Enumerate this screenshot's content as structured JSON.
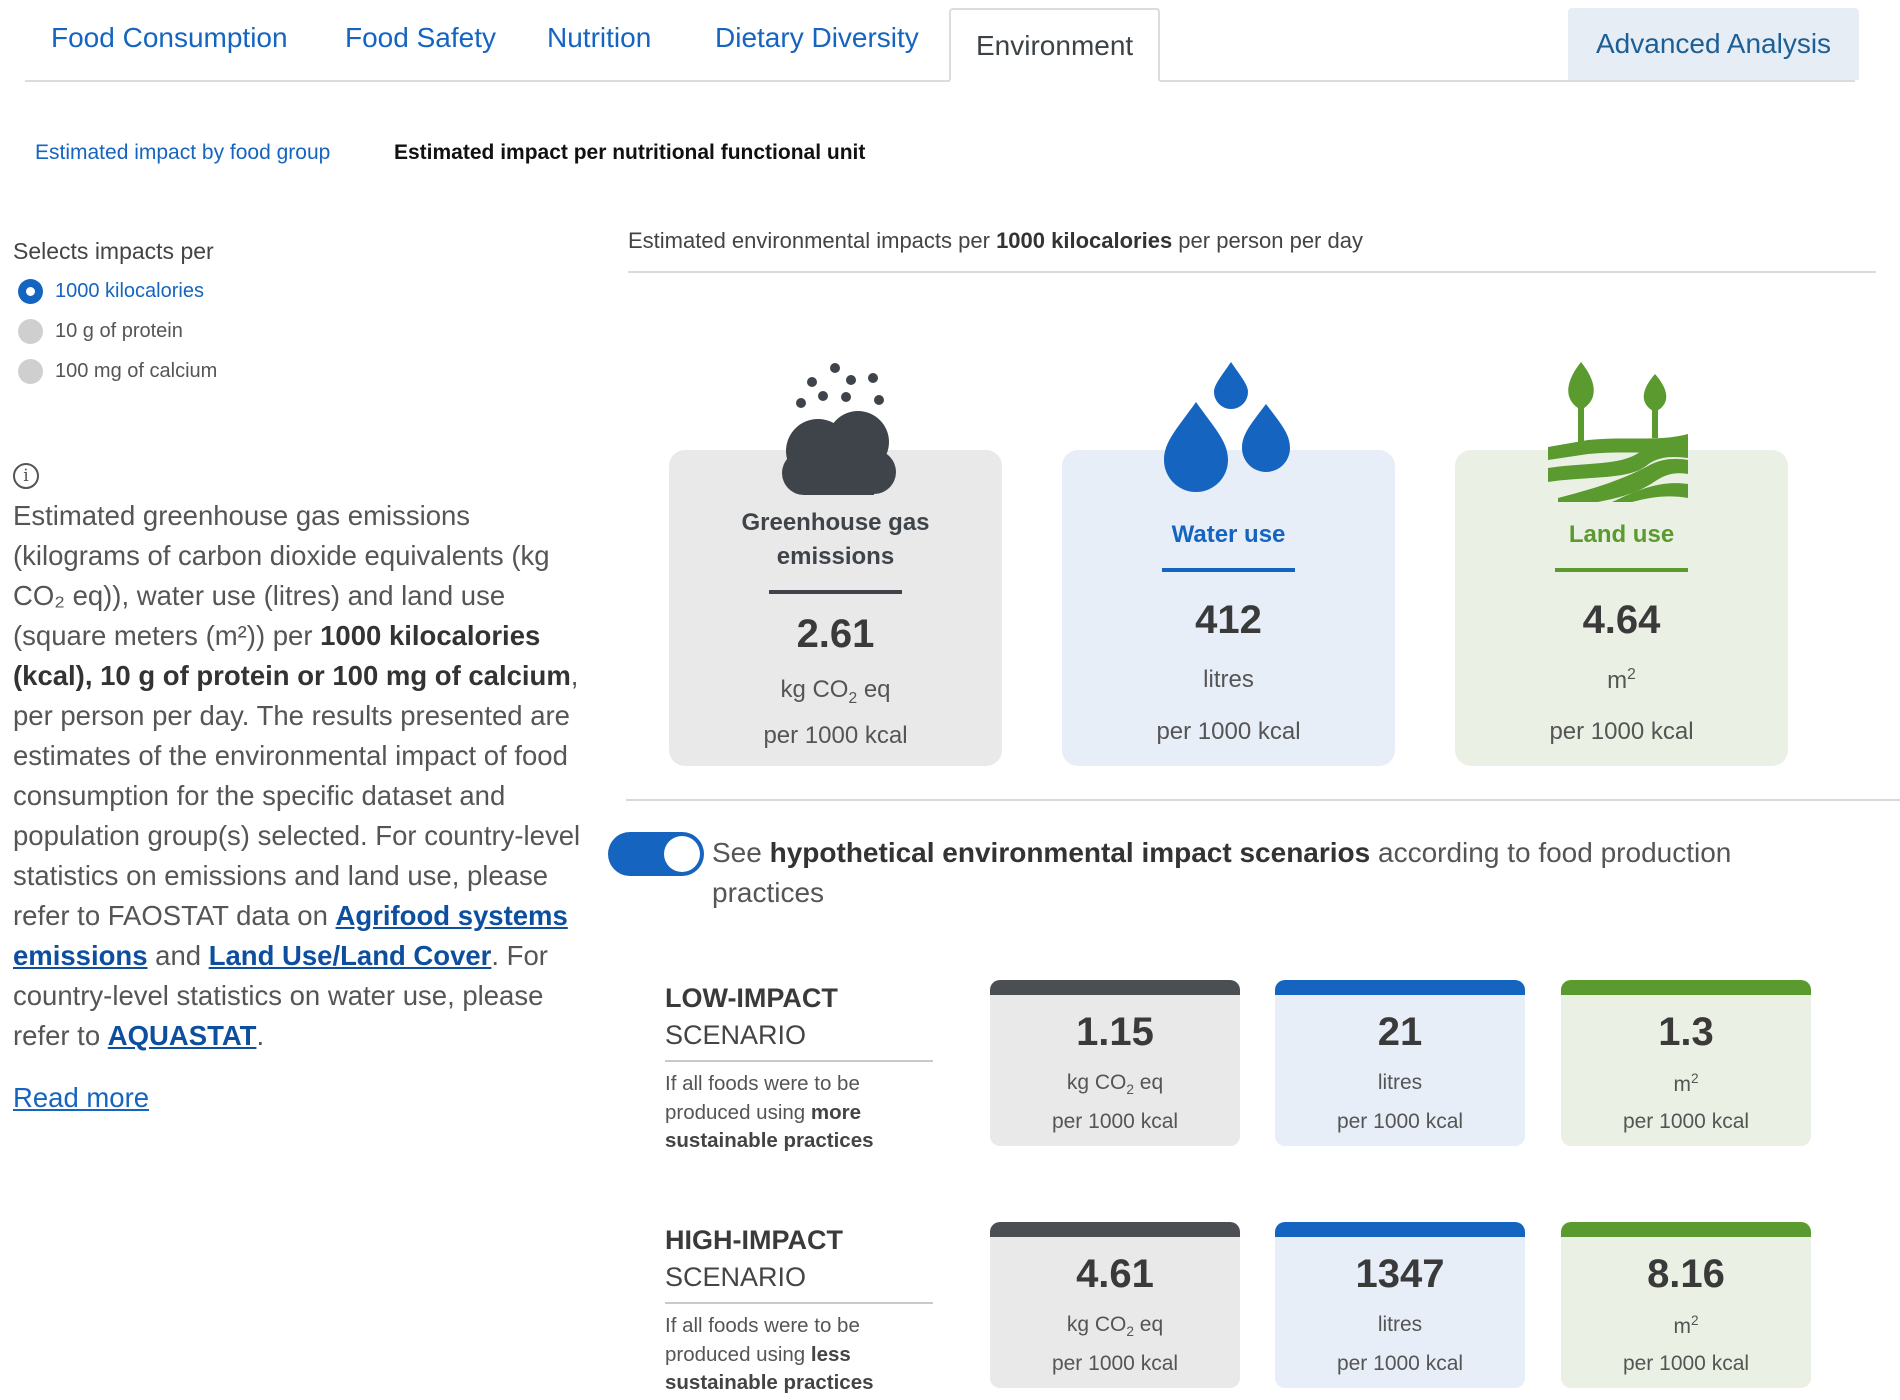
{
  "tabs": [
    {
      "label": "Food Consumption"
    },
    {
      "label": "Food Safety"
    },
    {
      "label": "Nutrition"
    },
    {
      "label": "Dietary Diversity"
    },
    {
      "label": "Environment"
    },
    {
      "label": "Advanced Analysis"
    }
  ],
  "active_tab": "Environment",
  "subtabs": {
    "by_food_group": "Estimated impact by food group",
    "per_unit": "Estimated impact per nutritional functional unit"
  },
  "selector": {
    "title": "Selects impacts per",
    "options": [
      "1000 kilocalories",
      "10 g of protein",
      "100 mg of calcium"
    ],
    "selected": "1000 kilocalories"
  },
  "info": {
    "icon": "info-icon",
    "p1": "Estimated greenhouse gas emissions (kilograms of carbon dioxide equivalents (kg CO₂ eq)), water use (litres) and land use (square meters (m²)) per ",
    "p1_bold": "1000 kilocalories (kcal), 10 g of protein or 100 mg of calcium",
    "p2": ", per person per day. The results presented are estimates of the environmental impact of food consumption for the specific dataset and population group(s) selected. For country-level statistics on emissions and land use, please refer to FAOSTAT data on ",
    "link1": "Agrifood systems emissions",
    "and": " and ",
    "link2": "Land Use/Land Cover",
    "p3": ". For country-level statistics on water use, please refer to ",
    "link3": "AQUASTAT",
    "end": ".",
    "read_more": "Read more"
  },
  "header": {
    "prefix": "Estimated environmental impacts per ",
    "bold": "1000 kilocalories",
    "suffix": " per person per day"
  },
  "cards": {
    "ghg": {
      "title": "Greenhouse gas emissions",
      "value": "2.61",
      "unit_main": "kg CO",
      "unit_sub": "2",
      "unit_tail": " eq",
      "per": "per 1000 kcal",
      "icon": "cloud-icon"
    },
    "water": {
      "title": "Water use",
      "value": "412",
      "unit": "litres",
      "per": "per 1000 kcal",
      "icon": "water-drops-icon"
    },
    "land": {
      "title": "Land use",
      "value": "4.64",
      "unit_main": "m",
      "unit_sup": "2",
      "per": "per 1000 kcal",
      "icon": "field-plant-icon"
    }
  },
  "toggle": {
    "on": true,
    "prefix": "See ",
    "bold": "hypothetical environmental impact scenarios",
    "suffix": " according to food production practices"
  },
  "scenarios": {
    "low": {
      "title_bold": "LOW-IMPACT",
      "title_rest": "SCENARIO",
      "desc_prefix": "If all foods were to be produced using ",
      "desc_bold": "more sustainable practices",
      "ghg": "1.15",
      "water": "21",
      "land": "1.3"
    },
    "high": {
      "title_bold": "HIGH-IMPACT",
      "title_rest": "SCENARIO",
      "desc_prefix": "If all foods were to be produced using ",
      "desc_bold": "less sustainable practices",
      "ghg": "4.61",
      "water": "1347",
      "land": "8.16"
    },
    "units": {
      "ghg_main": "kg CO",
      "ghg_sub": "2",
      "ghg_tail": " eq",
      "water": "litres",
      "land_main": "m",
      "land_sup": "2",
      "per": "per 1000 kcal"
    }
  },
  "colors": {
    "primary_blue": "#1565c0",
    "ghg_dark": "#3e4449",
    "land_green": "#5a9a2f",
    "ghg_bg": "#e9e9ea",
    "water_bg": "#e7eef8",
    "land_bg": "#eaf1e4"
  }
}
